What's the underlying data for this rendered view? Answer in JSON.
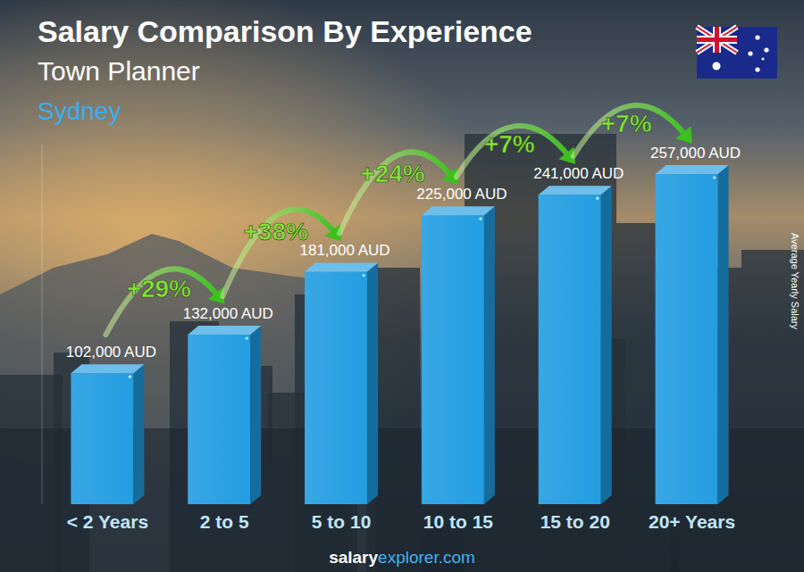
{
  "chart_data": {
    "type": "bar",
    "title": "Salary Comparison By Experience",
    "subtitle": "Town Planner",
    "location": "Sydney",
    "y_label": "Average Yearly Salary",
    "source": "salaryexplorer.com",
    "categories": [
      "< 2 Years",
      "2 to 5",
      "5 to 10",
      "10 to 15",
      "15 to 20",
      "20+ Years"
    ],
    "values": [
      102000,
      132000,
      181000,
      225000,
      241000,
      257000
    ],
    "value_labels": [
      "102,000 AUD",
      "132,000 AUD",
      "181,000 AUD",
      "225,000 AUD",
      "241,000 AUD",
      "257,000 AUD"
    ],
    "annotations": [
      "+29%",
      "+38%",
      "+24%",
      "+7%",
      "+7%"
    ],
    "ylim": [
      0,
      280000
    ],
    "color": "#1e9be0",
    "data_labels": true,
    "tick_labels": "x",
    "grid": false
  }
}
